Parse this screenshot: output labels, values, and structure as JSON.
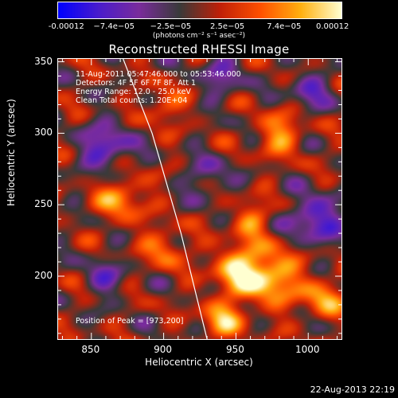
{
  "colorbar": {
    "tick_labels": [
      "-0.00012",
      "−7.4e−05",
      "−2.5e−05",
      "2.5e−05",
      "7.4e−05",
      "0.00012"
    ],
    "units_text": "(photons cm⁻² s⁻¹ asec⁻²)",
    "colors": [
      "#0000ff",
      "#4a1ccc",
      "#7a2c9c",
      "#3a3a3a",
      "#c02008",
      "#ff5000",
      "#ffb010",
      "#ffffd0"
    ]
  },
  "annotations": {
    "line1": "11-Aug-2011 05:47:46.000 to 05:53:46.000",
    "line2": "Detectors: 4F 5F 6F 7F 8F, Att 1",
    "line3": "Energy Range: 12.0 - 25.0 keV",
    "line4": "Clean     Total counts: 1.20E+04",
    "peak": "Position of Peak = [973,200]"
  },
  "footer": {
    "date": "22-Aug-2013 22:19"
  },
  "chart_data": {
    "type": "heatmap",
    "title": "Reconstructed RHESSI Image",
    "xlabel": "Heliocentric X (arcsec)",
    "ylabel": "Heliocentric Y (arcsec)",
    "xlim": [
      827,
      1023
    ],
    "ylim": [
      156,
      352
    ],
    "x_ticks": [
      850,
      900,
      950,
      1000
    ],
    "y_ticks": [
      200,
      250,
      300,
      350
    ],
    "colorbar_range": [
      -0.00012,
      0.00012
    ],
    "peak_position": [
      973,
      200
    ],
    "limb_curve": {
      "x": [
        872,
        892,
        912,
        930
      ],
      "y": [
        352,
        300,
        230,
        156
      ]
    },
    "sources": [
      {
        "x": 973,
        "y": 200,
        "v": 1.0,
        "s": 14
      },
      {
        "x": 950,
        "y": 205,
        "v": 0.85,
        "s": 12
      },
      {
        "x": 900,
        "y": 220,
        "v": 0.6,
        "s": 10
      },
      {
        "x": 870,
        "y": 255,
        "v": 0.7,
        "s": 12
      },
      {
        "x": 1010,
        "y": 185,
        "v": 0.75,
        "s": 10
      },
      {
        "x": 940,
        "y": 170,
        "v": 0.8,
        "s": 10
      },
      {
        "x": 980,
        "y": 300,
        "v": 0.7,
        "s": 11
      },
      {
        "x": 900,
        "y": 320,
        "v": 0.55,
        "s": 9
      },
      {
        "x": 960,
        "y": 240,
        "v": 0.6,
        "s": 9
      },
      {
        "x": 1005,
        "y": 240,
        "v": -0.9,
        "s": 12
      },
      {
        "x": 860,
        "y": 290,
        "v": -0.8,
        "s": 12
      },
      {
        "x": 1000,
        "y": 330,
        "v": -0.6,
        "s": 10
      },
      {
        "x": 930,
        "y": 270,
        "v": -0.5,
        "s": 10
      },
      {
        "x": 860,
        "y": 200,
        "v": -0.5,
        "s": 10
      },
      {
        "x": 940,
        "y": 340,
        "v": -0.55,
        "s": 10
      }
    ]
  }
}
